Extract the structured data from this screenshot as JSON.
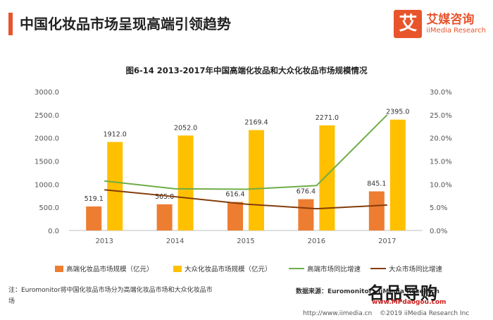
{
  "header": {
    "title": "中国化妆品市场呈现高端引领趋势"
  },
  "brand": {
    "icon_text": "艾",
    "name": "艾媒咨询",
    "sub": "iiMedia Research"
  },
  "chart_data": {
    "type": "bar",
    "title": "图6-14 2013-2017年中国高端化妆品和大众化妆品市场规模情况",
    "categories": [
      "2013",
      "2014",
      "2015",
      "2016",
      "2017"
    ],
    "y_left": {
      "min": 0,
      "max": 3000,
      "ticks": [
        "0.0",
        "500.0",
        "1000.0",
        "1500.0",
        "2000.0",
        "2500.0",
        "3000.0"
      ]
    },
    "y_right": {
      "min": 0,
      "max": 30,
      "ticks": [
        "0.0%",
        "5.0%",
        "10.0%",
        "15.0%",
        "20.0%",
        "25.0%",
        "30.0%"
      ]
    },
    "bar_series": [
      {
        "name": "高端化妆品市场规模（亿元）",
        "color": "#ed7d31",
        "values": [
          519.1,
          565.8,
          616.4,
          676.4,
          845.1
        ],
        "labels": [
          "519.1",
          "565.8",
          "616.4",
          "676.4",
          "845.1"
        ]
      },
      {
        "name": "大众化妆品市场规模（亿元）",
        "color": "#ffc000",
        "values": [
          1912.0,
          2052.0,
          2169.4,
          2271.0,
          2395.0
        ],
        "labels": [
          "1912.0",
          "2052.0",
          "2169.4",
          "2271.0",
          "2395.0"
        ]
      }
    ],
    "line_series": [
      {
        "name": "高端市场同比增速",
        "color": "#70ad47",
        "values": [
          10.7,
          9.0,
          8.9,
          9.7,
          25.0
        ]
      },
      {
        "name": "大众市场同比增速",
        "color": "#843c0c",
        "values": [
          8.8,
          7.3,
          5.7,
          4.7,
          5.5
        ]
      }
    ],
    "legend_position": "bottom"
  },
  "footer": {
    "note": "注：Euromonitor将中国化妆品市场分为高端化妆品市场和大众化妆品市场",
    "source": "数据来源：Euromonitor，iiMedia Research",
    "watermark": "名品导购",
    "watermark_url": "www.MPdaogou.com",
    "url": "http://www.iimedia.cn",
    "copyright": "©2019 iiMedia Research Inc"
  }
}
